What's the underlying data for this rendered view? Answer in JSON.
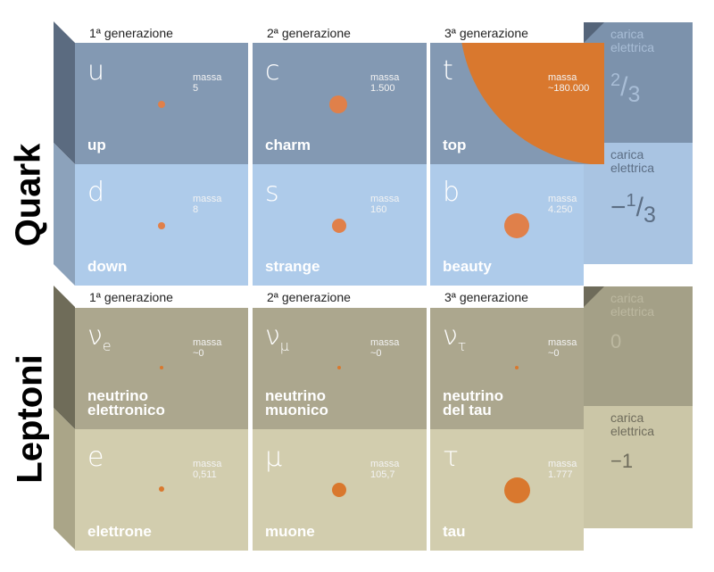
{
  "colors": {
    "orange": "#d9782e",
    "quark_top": "#8399b3",
    "quark_bottom": "#aecbea",
    "lepton_top": "#aca78e",
    "lepton_bottom": "#d2cdae"
  },
  "quark": {
    "label": "Quark",
    "generations": [
      "1ª generazione",
      "2ª generazione",
      "3ª generazione"
    ],
    "rows": [
      [
        {
          "symbol": "u",
          "sub": "",
          "mass_label": "massa",
          "mass": "5",
          "name": "up"
        },
        {
          "symbol": "c",
          "sub": "",
          "mass_label": "massa",
          "mass": "1.500",
          "name": "charm"
        },
        {
          "symbol": "t",
          "sub": "",
          "mass_label": "massa",
          "mass": "~180.000",
          "name": "top"
        }
      ],
      [
        {
          "symbol": "d",
          "sub": "",
          "mass_label": "massa",
          "mass": "8",
          "name": "down"
        },
        {
          "symbol": "s",
          "sub": "",
          "mass_label": "massa",
          "mass": "160",
          "name": "strange"
        },
        {
          "symbol": "b",
          "sub": "",
          "mass_label": "massa",
          "mass": "4.250",
          "name": "beauty"
        }
      ]
    ],
    "charges": [
      {
        "label": "carica elettrica",
        "value_num": "2",
        "value_den": "3",
        "value_sign": ""
      },
      {
        "label": "carica elettrica",
        "value_num": "1",
        "value_den": "3",
        "value_sign": "−"
      }
    ]
  },
  "leptons": {
    "label": "Leptoni",
    "generations": [
      "1ª generazione",
      "2ª generazione",
      "3ª generazione"
    ],
    "rows": [
      [
        {
          "symbol": "ν",
          "sub": "e",
          "mass_label": "massa",
          "mass": "~0",
          "name1": "neutrino",
          "name2": "elettronico"
        },
        {
          "symbol": "ν",
          "sub": "μ",
          "mass_label": "massa",
          "mass": "~0",
          "name1": "neutrino",
          "name2": "muonico"
        },
        {
          "symbol": "ν",
          "sub": "τ",
          "mass_label": "massa",
          "mass": "~0",
          "name1": "neutrino",
          "name2": "del tau"
        }
      ],
      [
        {
          "symbol": "e",
          "sub": "",
          "mass_label": "massa",
          "mass": "0,511",
          "name1": "elettrone",
          "name2": ""
        },
        {
          "symbol": "μ",
          "sub": "",
          "mass_label": "massa",
          "mass": "105,7",
          "name1": "muone",
          "name2": ""
        },
        {
          "symbol": "τ",
          "sub": "",
          "mass_label": "massa",
          "mass": "1.777",
          "name1": "tau",
          "name2": ""
        }
      ]
    ],
    "charges": [
      {
        "label": "carica elettrica",
        "value": "0"
      },
      {
        "label": "carica elettrica",
        "value": "−1"
      }
    ]
  }
}
